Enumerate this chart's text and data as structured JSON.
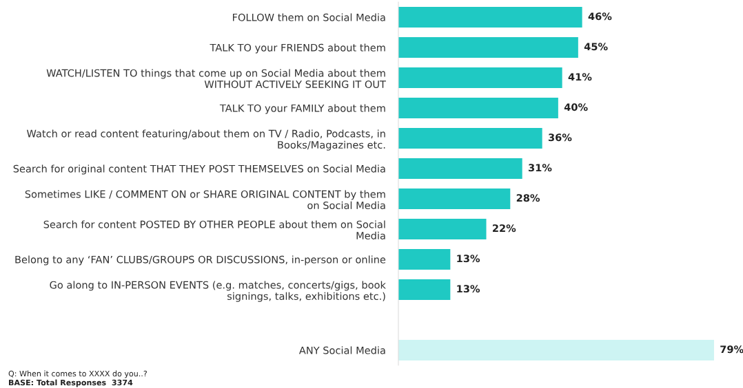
{
  "chart_data": {
    "type": "bar",
    "orientation": "horizontal",
    "categories": [
      "FOLLOW them on Social Media",
      "TALK TO your FRIENDS about them",
      "WATCH/LISTEN TO things that come up on Social Media about them\nWITHOUT ACTIVELY SEEKING IT OUT",
      "TALK TO your FAMILY about them",
      "Watch or read content featuring/about them on TV / Radio, Podcasts, in\nBooks/Magazines etc.",
      "Search for original content THAT THEY POST THEMSELVES on Social Media",
      "Sometimes LIKE / COMMENT ON or SHARE ORIGINAL CONTENT by them\non Social Media",
      "Search for content POSTED BY OTHER PEOPLE about them on Social\nMedia",
      "Belong to any ‘FAN’ CLUBS/GROUPS OR DISCUSSIONS, in-person or online",
      "Go along to IN-PERSON EVENTS (e.g. matches, concerts/gigs, book\nsignings, talks, exhibitions etc.)",
      null,
      "ANY Social Media"
    ],
    "values": [
      46,
      45,
      41,
      40,
      36,
      31,
      28,
      22,
      13,
      13,
      null,
      79
    ],
    "value_labels": [
      "46%",
      "45%",
      "41%",
      "40%",
      "36%",
      "31%",
      "28%",
      "22%",
      "13%",
      "13%",
      null,
      "79%"
    ],
    "colors": [
      "#1fc9c3",
      "#1fc9c3",
      "#1fc9c3",
      "#1fc9c3",
      "#1fc9c3",
      "#1fc9c3",
      "#1fc9c3",
      "#1fc9c3",
      "#1fc9c3",
      "#1fc9c3",
      "#1fc9c3",
      "#cdf4f3"
    ],
    "annotations": [
      "Q: When it comes to XXXX do you..?",
      "BASE: Total Responses  3374"
    ],
    "grid": false,
    "legend": false
  }
}
